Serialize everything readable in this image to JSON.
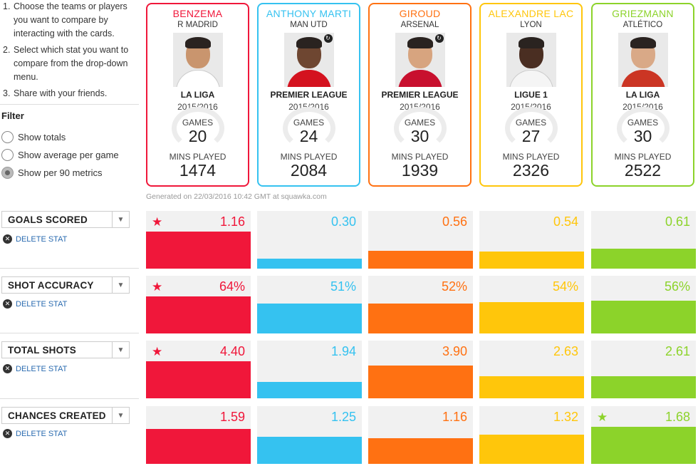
{
  "instructions": [
    {
      "num": "1.",
      "text": "Choose the teams or players you want to compare by interacting with the cards."
    },
    {
      "num": "2.",
      "text": "Select which stat you want to compare from the drop-down menu."
    },
    {
      "num": "3.",
      "text": "Share with your friends."
    }
  ],
  "filter": {
    "title": "Filter",
    "options": [
      "Show totals",
      "Show average per game",
      "Show per 90 metrics"
    ],
    "selected": 2
  },
  "labels": {
    "games": "GAMES",
    "mins_played": "MINS PLAYED",
    "delete_stat": "DELETE STAT",
    "star": "★",
    "caret": "▼",
    "close_x": "✕"
  },
  "generated": "Generated on 22/03/2016 10:42 GMT at squawka.com",
  "players": [
    {
      "name": "BENZEMA",
      "team": "R MADRID",
      "league": "LA LIGA",
      "season": "2015/2016",
      "games": "20",
      "mins": "1474",
      "color": "#f0173a",
      "skin": "#c9956e",
      "shirt": "#ffffff",
      "badge": false
    },
    {
      "name": "ANTHONY MARTI",
      "team": "MAN UTD",
      "league": "PREMIER LEAGUE",
      "season": "2015/2016",
      "games": "24",
      "mins": "2084",
      "color": "#35c2f0",
      "skin": "#6e4631",
      "shirt": "#d4121f",
      "badge": true
    },
    {
      "name": "GIROUD",
      "team": "ARSENAL",
      "league": "PREMIER LEAGUE",
      "season": "2015/2016",
      "games": "30",
      "mins": "1939",
      "color": "#ff7112",
      "skin": "#d7a47f",
      "shirt": "#c8102e",
      "badge": true
    },
    {
      "name": "ALEXANDRE LAC",
      "team": "LYON",
      "league": "LIGUE 1",
      "season": "2015/2016",
      "games": "27",
      "mins": "2326",
      "color": "#ffc60b",
      "skin": "#4a2e22",
      "shirt": "#f5f5f5",
      "badge": false
    },
    {
      "name": "GRIEZMANN",
      "team": "ATLÉTICO",
      "league": "LA LIGA",
      "season": "2015/2016",
      "games": "30",
      "mins": "2522",
      "color": "#8cd32a",
      "skin": "#d9a987",
      "shirt": "#cb3524",
      "badge": false
    }
  ],
  "stats": [
    {
      "label": "GOALS SCORED",
      "values": [
        "1.16",
        "0.30",
        "0.56",
        "0.54",
        "0.61"
      ],
      "fraction": [
        1.0,
        0.26,
        0.48,
        0.47,
        0.53
      ],
      "best": 0
    },
    {
      "label": "SHOT ACCURACY",
      "values": [
        "64%",
        "51%",
        "52%",
        "54%",
        "56%"
      ],
      "fraction": [
        1.0,
        0.8,
        0.81,
        0.84,
        0.88
      ],
      "best": 0
    },
    {
      "label": "TOTAL SHOTS",
      "values": [
        "4.40",
        "1.94",
        "3.90",
        "2.63",
        "2.61"
      ],
      "fraction": [
        1.0,
        0.44,
        0.89,
        0.6,
        0.59
      ],
      "best": 0
    },
    {
      "label": "CHANCES CREATED",
      "values": [
        "1.59",
        "1.25",
        "1.16",
        "1.32",
        "1.68"
      ],
      "fraction": [
        0.95,
        0.74,
        0.69,
        0.79,
        1.0
      ],
      "best": 4
    }
  ]
}
